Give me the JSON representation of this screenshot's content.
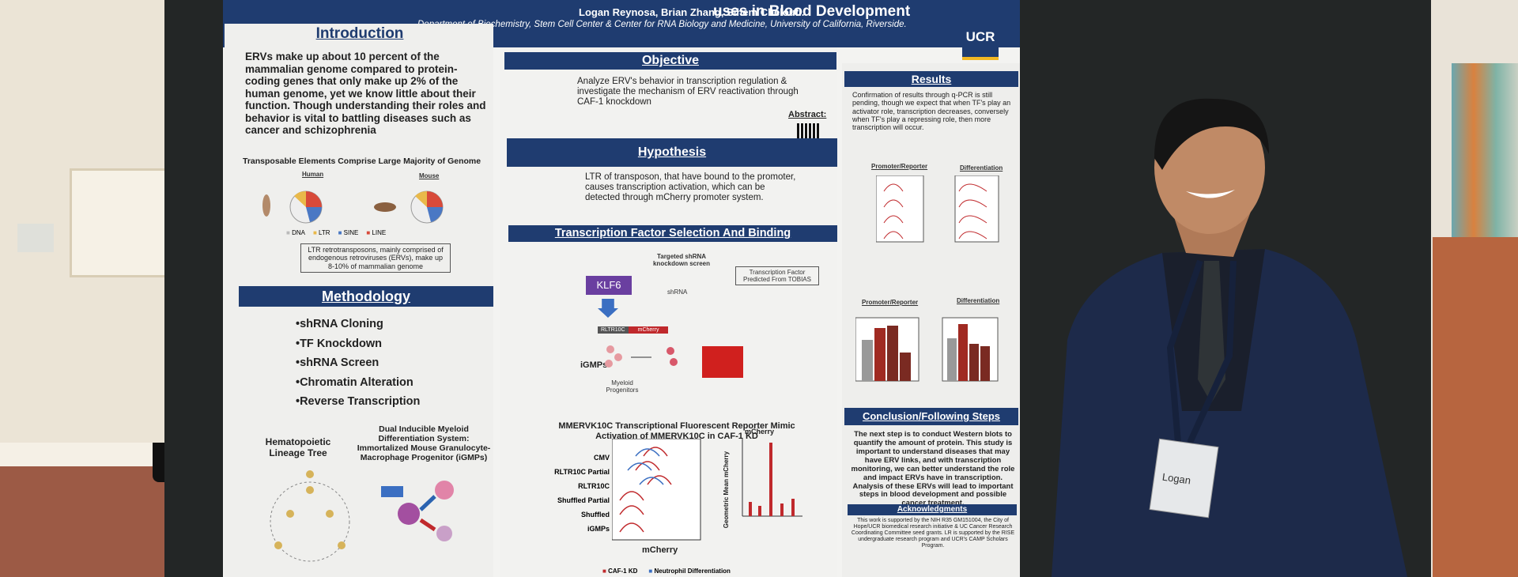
{
  "header": {
    "title": "uses in Blood Development",
    "authors": "Logan Reynosa, Brian Zhang, Sihem Cheloufi.",
    "affiliation": "Department of Biochemistry, Stem Cell Center & Center for RNA Biology and Medicine, University of California, Riverside.",
    "logo": "UCR"
  },
  "introduction": {
    "heading": "Introduction",
    "text": "ERVs make up about 10 percent of the mammalian genome compared to protein-coding genes that only make up 2% of the human genome, yet we know little about their function. Though understanding their roles and behavior is vital to battling diseases such as cancer and schizophrenia",
    "figure_title": "Transposable Elements Comprise Large Majority of Genome",
    "human": "Human",
    "mouse": "Mouse",
    "legend": [
      "DNA",
      "LTR",
      "SINE",
      "LINE"
    ],
    "note": "LTR retrotransposons, mainly comprised of endogenous retroviruses (ERVs), make up 8-10% of mammalian genome"
  },
  "methodology": {
    "heading": "Methodology",
    "items": [
      "•shRNA Cloning",
      "•TF Knockdown",
      "•shRNA Screen",
      "•Chromatin Alteration",
      "•Reverse Transcription"
    ],
    "lineage_title": "Hematopoietic Lineage Tree",
    "system_title": "Dual Inducible Myeloid Differentiation System: Immortalized Mouse Granulocyte-Macrophage Progenitor (iGMPs)"
  },
  "objective": {
    "heading": "Objective",
    "text": "Analyze ERV's behavior in transcription regulation & investigate the mechanism of ERV reactivation through CAF-1 knockdown",
    "abstract": "Abstract:"
  },
  "hypothesis": {
    "heading": "Hypothesis",
    "text": "LTR of transposon, that have bound to the promoter, causes transcription activation, which can be detected through mCherry promoter system."
  },
  "tf_selection": {
    "heading": "Transcription Factor Selection And Binding",
    "screen": "Targeted shRNA knockdown screen",
    "tf": "KLF6",
    "predicted": "Transcription Factor Predicted From TOBIAS",
    "igmps": "iGMPs",
    "shrna": "shRNA",
    "construct": [
      "RLTR10C",
      "mCherry"
    ],
    "progenitors": "Myeloid Progenitors"
  },
  "reporter": {
    "title": "MMERVK10C Transcriptional Fluorescent Reporter Mimic Activation of MMERVK10C in CAF-1 KD",
    "rows": [
      "CMV",
      "RLTR10C Partial",
      "RLTR10C",
      "Shuffled Partial",
      "Shuffled",
      "iGMPs"
    ],
    "xlabel": "mCherry",
    "bar_title": "mCherry",
    "ylabel": "Geometric Mean mCherry",
    "legend": [
      "CAF-1 KD",
      "Neutrophil Differentiation"
    ]
  },
  "results": {
    "heading": "Results",
    "text": "Confirmation of results through q-PCR is still pending, though we expect that when TF's play an activator role, transcription decreases, conversely when TF's play a repressing role, then more transcription will occur.",
    "panels": [
      "Promoter/Reporter",
      "Differentiation",
      "Promoter/Reporter",
      "Differentiation"
    ]
  },
  "conclusion": {
    "heading": "Conclusion/Following Steps",
    "text": "The next step is to conduct Western blots to quantify the amount of protein. This study is important to understand diseases that may have ERV links, and with transcription monitoring, we can better understand the role and impact ERVs have in transcription. Analysis of these ERVs will lead to important steps in blood development and possible cancer treatment."
  },
  "acknowledgments": {
    "heading": "Acknowledgments",
    "text": "This work is supported by the NIH R35 GM151004, the City of Hope/UCR biomedical research initiative & UC Cancer Research Coordinating Committee seed grants. LR is supported by the RISE undergraduate research program and UCR's CAMP Scholars Program."
  },
  "badge": {
    "name": "Logan"
  }
}
